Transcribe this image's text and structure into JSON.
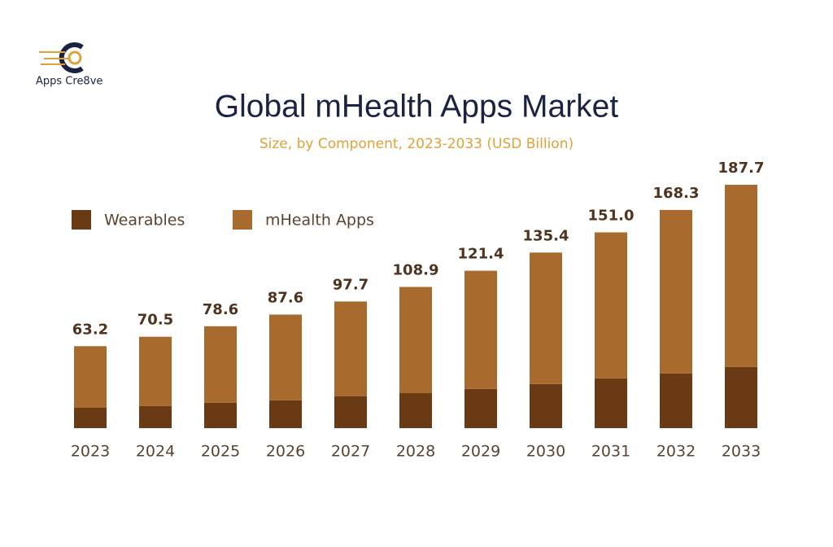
{
  "logo": {
    "text": "Apps Cre8ve"
  },
  "chart_data": {
    "type": "stacked-bar",
    "title": "Global mHealth Apps Market",
    "subtitle": "Size, by Component, 2023-2033 (USD Billion)",
    "categories": [
      "2023",
      "2024",
      "2025",
      "2026",
      "2027",
      "2028",
      "2029",
      "2030",
      "2031",
      "2032",
      "2033"
    ],
    "series": [
      {
        "name": "Wearables",
        "color": "#6a3a15",
        "values": [
          15.7,
          17.0,
          19.5,
          21.4,
          24.5,
          27.0,
          30.2,
          34.0,
          38.4,
          42.1,
          47.2
        ]
      },
      {
        "name": "mHealth Apps",
        "color": "#a86a2d",
        "values": [
          47.5,
          53.5,
          59.1,
          66.2,
          73.2,
          81.9,
          91.2,
          101.4,
          112.6,
          126.2,
          140.5
        ]
      }
    ],
    "totals": [
      63.2,
      70.5,
      78.6,
      87.6,
      97.7,
      108.9,
      121.4,
      135.4,
      151.0,
      168.3,
      187.7
    ],
    "value_labels": {
      "totals": [
        "63.2",
        "70.5",
        "78.6",
        "87.6",
        "97.7",
        "108.9",
        "121.4",
        "135.4",
        "151.0",
        "168.3",
        "187.7"
      ]
    },
    "legend": "top-left"
  }
}
